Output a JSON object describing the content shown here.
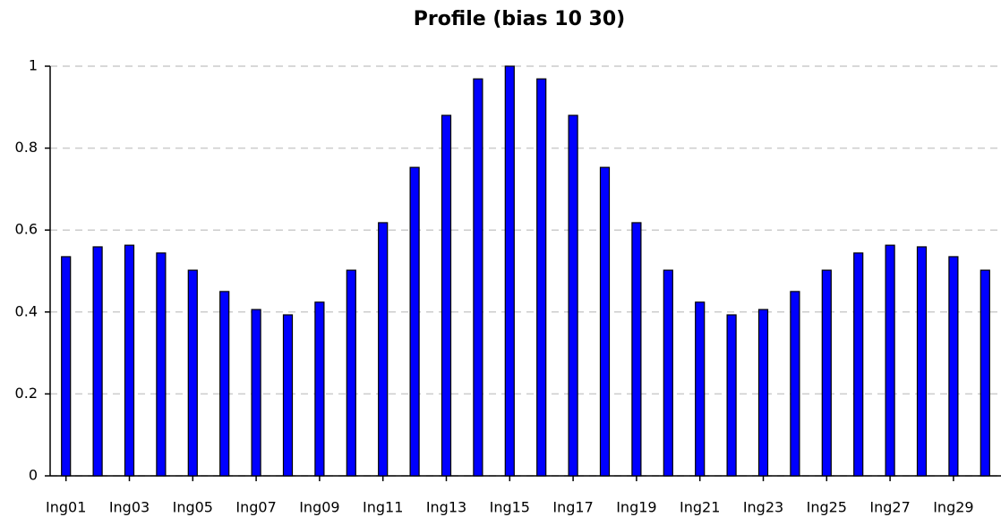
{
  "chart_data": {
    "type": "bar",
    "title": "Profile (bias 10 30)",
    "categories": [
      "Ing01",
      null,
      "Ing03",
      null,
      "Ing05",
      null,
      "Ing07",
      null,
      "Ing09",
      null,
      "Ing11",
      null,
      "Ing13",
      null,
      "Ing15",
      null,
      "Ing17",
      null,
      "Ing19",
      null,
      "Ing21",
      null,
      "Ing23",
      null,
      "Ing25",
      null,
      "Ing27",
      null,
      "Ing29",
      null
    ],
    "values": [
      0.535,
      0.559,
      0.563,
      0.544,
      0.502,
      0.45,
      0.406,
      0.393,
      0.424,
      0.502,
      0.618,
      0.753,
      0.88,
      0.969,
      1.0,
      0.969,
      0.88,
      0.753,
      0.618,
      0.502,
      0.424,
      0.393,
      0.406,
      0.45,
      0.502,
      0.544,
      0.563,
      0.559,
      0.535,
      0.502
    ],
    "color": "#0000ff",
    "ylim": [
      0,
      1
    ],
    "yticks": [
      0,
      0.2,
      0.4,
      0.6,
      0.8,
      1
    ],
    "grid": true
  }
}
